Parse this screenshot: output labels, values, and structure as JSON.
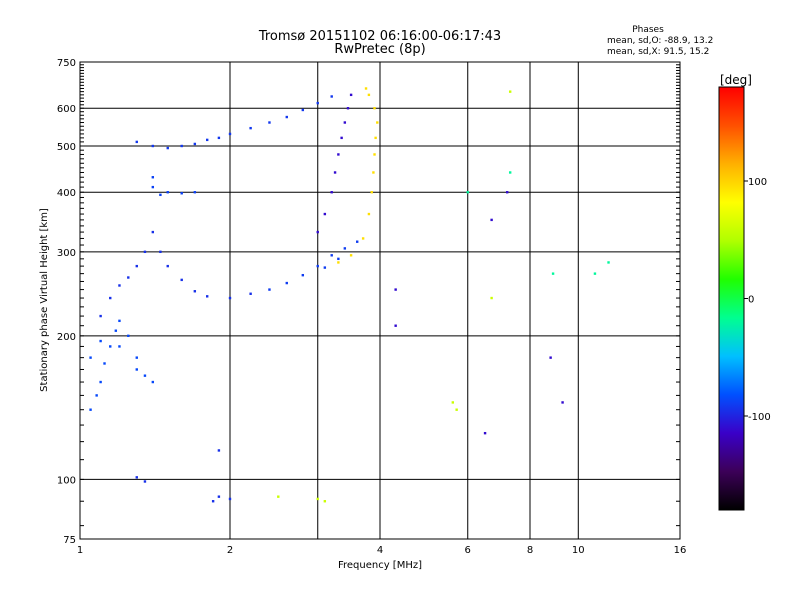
{
  "header": {
    "title_line1": "Tromsø 20151102 06:16:00-06:17:43",
    "title_line2": "RwPretec (8p)"
  },
  "phases_box": {
    "heading": "Phases",
    "line_o": "mean, sd,O: -88.9, 13.2",
    "line_x": "mean, sd,X:  91.5, 15.2"
  },
  "colorbar": {
    "label": "[deg]",
    "min": -180,
    "max": 180,
    "ticks": [
      100,
      0,
      -100
    ],
    "colors": [
      "#000000",
      "#3c0058",
      "#3a00c8",
      "#0050ff",
      "#00c0ff",
      "#00ff90",
      "#20ff00",
      "#b0ff00",
      "#ffff00",
      "#ffb000",
      "#ff5000",
      "#ff0000"
    ]
  },
  "chart_data": {
    "type": "scatter",
    "title": "Tromsø 20151102 06:16:00-06:17:43",
    "subtitle": "RwPretec (8p)",
    "xlabel": "Frequency [MHz]",
    "ylabel": "Stationary phase Virtual Height [km]",
    "x_scale": "log",
    "y_scale": "log",
    "xlim": [
      1,
      16
    ],
    "ylim": [
      75,
      750
    ],
    "x_ticks": [
      1,
      2,
      4,
      6,
      8,
      10,
      16
    ],
    "y_ticks": [
      75,
      100,
      200,
      300,
      400,
      500,
      600,
      750
    ],
    "grid_x": [
      1,
      2,
      3,
      4,
      6,
      8,
      10,
      16
    ],
    "grid_y": [
      100,
      200,
      300,
      400,
      500,
      600,
      750
    ],
    "grid": true,
    "colorbar_label": "[deg]",
    "series": [
      {
        "phase": -85,
        "points": [
          [
            1.05,
            140
          ],
          [
            1.08,
            150
          ],
          [
            1.1,
            160
          ],
          [
            1.12,
            175
          ],
          [
            1.15,
            190
          ],
          [
            1.18,
            205
          ],
          [
            1.2,
            215
          ],
          [
            1.25,
            200
          ],
          [
            1.3,
            180
          ],
          [
            1.35,
            165
          ],
          [
            1.4,
            160
          ],
          [
            1.05,
            180
          ],
          [
            1.1,
            195
          ],
          [
            1.2,
            190
          ],
          [
            1.3,
            170
          ]
        ]
      },
      {
        "phase": -95,
        "points": [
          [
            1.1,
            220
          ],
          [
            1.15,
            240
          ],
          [
            1.2,
            255
          ],
          [
            1.25,
            265
          ],
          [
            1.3,
            280
          ],
          [
            1.35,
            300
          ],
          [
            1.4,
            330
          ],
          [
            1.45,
            300
          ],
          [
            1.5,
            280
          ],
          [
            1.6,
            262
          ],
          [
            1.7,
            248
          ],
          [
            1.8,
            242
          ],
          [
            2.0,
            240
          ],
          [
            2.2,
            245
          ]
        ]
      },
      {
        "phase": -90,
        "points": [
          [
            2.4,
            250
          ],
          [
            2.6,
            258
          ],
          [
            2.8,
            268
          ],
          [
            3.0,
            280
          ],
          [
            3.2,
            295
          ],
          [
            3.4,
            305
          ],
          [
            3.6,
            315
          ],
          [
            3.3,
            290
          ],
          [
            3.1,
            278
          ]
        ]
      },
      {
        "phase": -110,
        "points": [
          [
            3.0,
            330
          ],
          [
            3.1,
            360
          ],
          [
            3.2,
            400
          ],
          [
            3.25,
            440
          ],
          [
            3.3,
            480
          ],
          [
            3.35,
            520
          ],
          [
            3.4,
            560
          ],
          [
            3.45,
            600
          ],
          [
            3.5,
            640
          ]
        ]
      },
      {
        "phase": -92,
        "points": [
          [
            1.3,
            510
          ],
          [
            1.4,
            500
          ],
          [
            1.5,
            495
          ],
          [
            1.6,
            500
          ],
          [
            1.7,
            505
          ],
          [
            1.8,
            515
          ],
          [
            1.9,
            520
          ],
          [
            2.0,
            530
          ],
          [
            2.2,
            545
          ],
          [
            2.4,
            560
          ],
          [
            2.6,
            575
          ],
          [
            2.8,
            595
          ],
          [
            3.0,
            615
          ],
          [
            3.2,
            635
          ]
        ]
      },
      {
        "phase": -88,
        "points": [
          [
            1.4,
            410
          ],
          [
            1.5,
            400
          ],
          [
            1.6,
            398
          ],
          [
            1.7,
            400
          ],
          [
            1.4,
            430
          ],
          [
            1.45,
            395
          ]
        ]
      },
      {
        "phase": 95,
        "points": [
          [
            3.3,
            285
          ],
          [
            3.5,
            295
          ],
          [
            3.7,
            320
          ],
          [
            3.8,
            360
          ],
          [
            3.85,
            400
          ],
          [
            3.88,
            440
          ],
          [
            3.9,
            480
          ],
          [
            3.92,
            520
          ],
          [
            3.95,
            560
          ],
          [
            3.9,
            600
          ],
          [
            3.8,
            640
          ],
          [
            3.75,
            660
          ]
        ]
      },
      {
        "phase": -95,
        "points": [
          [
            1.85,
            90
          ],
          [
            1.9,
            92
          ],
          [
            2.0,
            91
          ],
          [
            1.9,
            115
          ],
          [
            1.3,
            101
          ],
          [
            1.35,
            99
          ]
        ]
      },
      {
        "phase": 60,
        "points": [
          [
            2.5,
            92
          ],
          [
            3.0,
            91
          ],
          [
            3.1,
            90
          ],
          [
            5.6,
            145
          ],
          [
            5.7,
            140
          ],
          [
            6.7,
            240
          ],
          [
            7.3,
            650
          ]
        ]
      },
      {
        "phase": -110,
        "points": [
          [
            8.8,
            180
          ],
          [
            9.3,
            145
          ],
          [
            6.5,
            125
          ],
          [
            6.7,
            350
          ],
          [
            7.2,
            400
          ],
          [
            4.3,
            250
          ],
          [
            4.3,
            210
          ]
        ]
      },
      {
        "phase": -20,
        "points": [
          [
            8.9,
            270
          ],
          [
            7.3,
            440
          ],
          [
            10.8,
            270
          ],
          [
            11.5,
            285
          ],
          [
            6.0,
            400
          ]
        ]
      }
    ]
  }
}
